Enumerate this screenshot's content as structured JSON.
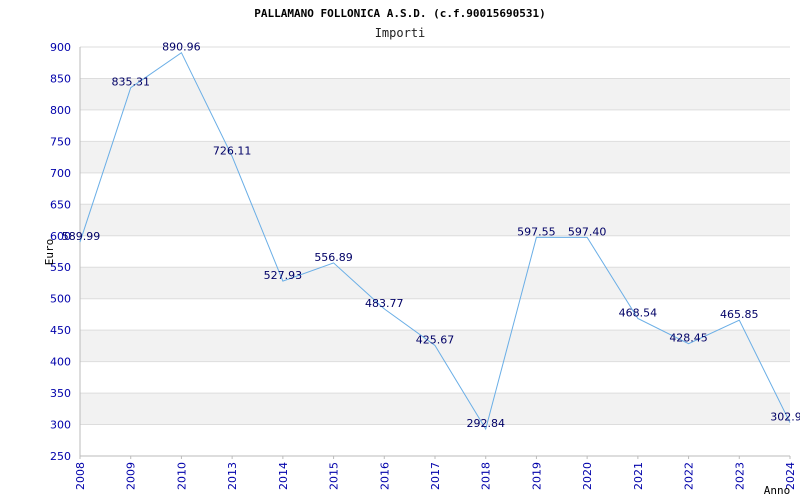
{
  "chart_data": {
    "type": "line",
    "title": "PALLAMANO FOLLONICA A.S.D. (c.f.90015690531)",
    "subtitle": "Importi",
    "xlabel": "Anno",
    "ylabel": "Euro",
    "categories": [
      "2008",
      "2009",
      "2010",
      "2013",
      "2014",
      "2015",
      "2016",
      "2017",
      "2018",
      "2019",
      "2020",
      "2021",
      "2022",
      "2023",
      "2024"
    ],
    "series": [
      {
        "values": [
          589.99,
          835.31,
          890.96,
          726.11,
          527.93,
          556.89,
          483.77,
          425.67,
          292.84,
          597.55,
          597.4,
          468.54,
          428.45,
          465.85,
          302.9
        ],
        "labels": [
          "589.99",
          "835.31",
          "890.96",
          "726.11",
          "527.93",
          "556.89",
          "483.77",
          "425.67",
          "292.84",
          "597.55",
          "597.40",
          "468.54",
          "428.45",
          "465.85",
          "302.9"
        ]
      }
    ],
    "ylim": [
      250,
      900
    ],
    "yticks": [
      250,
      300,
      350,
      400,
      450,
      500,
      550,
      600,
      650,
      700,
      750,
      800,
      850,
      900
    ],
    "grid": true,
    "colors": {
      "line": "#6aaee6",
      "band": "#f2f2f2",
      "grid": "#dddddd",
      "tick": "#0000aa",
      "label": "#000066"
    }
  }
}
